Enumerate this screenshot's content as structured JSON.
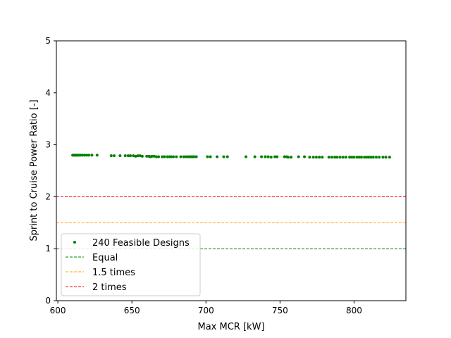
{
  "chart_data": {
    "type": "scatter",
    "title": "",
    "xlabel": "Max MCR [kW]",
    "ylabel": "Sprint to Cruise Power Ratio [-]",
    "xlim": [
      599,
      835
    ],
    "ylim": [
      0,
      5
    ],
    "xticks": [
      600,
      650,
      700,
      750,
      800
    ],
    "yticks": [
      0,
      1,
      2,
      3,
      4,
      5
    ],
    "grid": false,
    "legend_position": "lower-left",
    "series": [
      {
        "name": "240 Feasible Designs",
        "kind": "scatter",
        "color": "#008000",
        "points": [
          [
            610.0,
            2.8
          ],
          [
            610.8,
            2.8
          ],
          [
            611.5,
            2.8
          ],
          [
            612.2,
            2.8
          ],
          [
            613.0,
            2.8
          ],
          [
            614.0,
            2.8
          ],
          [
            615.2,
            2.8
          ],
          [
            616.5,
            2.8
          ],
          [
            618.0,
            2.8
          ],
          [
            619.5,
            2.8
          ],
          [
            621.0,
            2.8
          ],
          [
            623.0,
            2.8
          ],
          [
            626.5,
            2.8
          ],
          [
            636.0,
            2.79
          ],
          [
            638.0,
            2.79
          ],
          [
            642.0,
            2.79
          ],
          [
            645.5,
            2.79
          ],
          [
            647.5,
            2.79
          ],
          [
            649.0,
            2.79
          ],
          [
            651.0,
            2.79
          ],
          [
            652.5,
            2.78
          ],
          [
            654.0,
            2.79
          ],
          [
            655.5,
            2.79
          ],
          [
            657.0,
            2.78
          ],
          [
            660.0,
            2.78
          ],
          [
            661.5,
            2.78
          ],
          [
            662.5,
            2.77
          ],
          [
            663.5,
            2.78
          ],
          [
            665.0,
            2.78
          ],
          [
            666.5,
            2.77
          ],
          [
            668.0,
            2.77
          ],
          [
            670.5,
            2.77
          ],
          [
            672.0,
            2.77
          ],
          [
            674.0,
            2.77
          ],
          [
            675.5,
            2.77
          ],
          [
            676.5,
            2.77
          ],
          [
            678.0,
            2.77
          ],
          [
            680.0,
            2.77
          ],
          [
            683.0,
            2.77
          ],
          [
            685.0,
            2.77
          ],
          [
            686.5,
            2.77
          ],
          [
            688.0,
            2.77
          ],
          [
            689.0,
            2.77
          ],
          [
            690.0,
            2.77
          ],
          [
            691.0,
            2.77
          ],
          [
            692.0,
            2.77
          ],
          [
            693.5,
            2.77
          ],
          [
            701.0,
            2.77
          ],
          [
            703.0,
            2.77
          ],
          [
            707.5,
            2.77
          ],
          [
            712.0,
            2.77
          ],
          [
            714.5,
            2.77
          ],
          [
            727.0,
            2.77
          ],
          [
            733.0,
            2.77
          ],
          [
            737.5,
            2.77
          ],
          [
            740.0,
            2.77
          ],
          [
            742.0,
            2.77
          ],
          [
            744.0,
            2.76
          ],
          [
            746.5,
            2.77
          ],
          [
            748.0,
            2.77
          ],
          [
            753.0,
            2.77
          ],
          [
            754.5,
            2.77
          ],
          [
            755.5,
            2.76
          ],
          [
            757.5,
            2.76
          ],
          [
            762.5,
            2.77
          ],
          [
            766.5,
            2.77
          ],
          [
            770.0,
            2.76
          ],
          [
            772.5,
            2.76
          ],
          [
            774.5,
            2.76
          ],
          [
            776.5,
            2.76
          ],
          [
            778.5,
            2.76
          ],
          [
            783.0,
            2.76
          ],
          [
            785.0,
            2.76
          ],
          [
            787.0,
            2.76
          ],
          [
            788.5,
            2.76
          ],
          [
            790.5,
            2.76
          ],
          [
            792.5,
            2.76
          ],
          [
            794.5,
            2.76
          ],
          [
            797.0,
            2.76
          ],
          [
            798.5,
            2.76
          ],
          [
            800.0,
            2.76
          ],
          [
            802.0,
            2.76
          ],
          [
            803.5,
            2.76
          ],
          [
            805.0,
            2.76
          ],
          [
            807.0,
            2.76
          ],
          [
            808.5,
            2.76
          ],
          [
            810.0,
            2.76
          ],
          [
            811.5,
            2.76
          ],
          [
            813.0,
            2.76
          ],
          [
            815.0,
            2.76
          ],
          [
            817.0,
            2.76
          ],
          [
            819.5,
            2.76
          ],
          [
            821.5,
            2.76
          ],
          [
            824.0,
            2.76
          ]
        ]
      },
      {
        "name": "Equal",
        "kind": "hline",
        "y": 1,
        "color": "#008000",
        "dash": "dashed"
      },
      {
        "name": "1.5 times",
        "kind": "hline",
        "y": 1.5,
        "color": "#FFA500",
        "dash": "dashed"
      },
      {
        "name": "2 times",
        "kind": "hline",
        "y": 2,
        "color": "#FF0000",
        "dash": "dashed"
      }
    ]
  }
}
